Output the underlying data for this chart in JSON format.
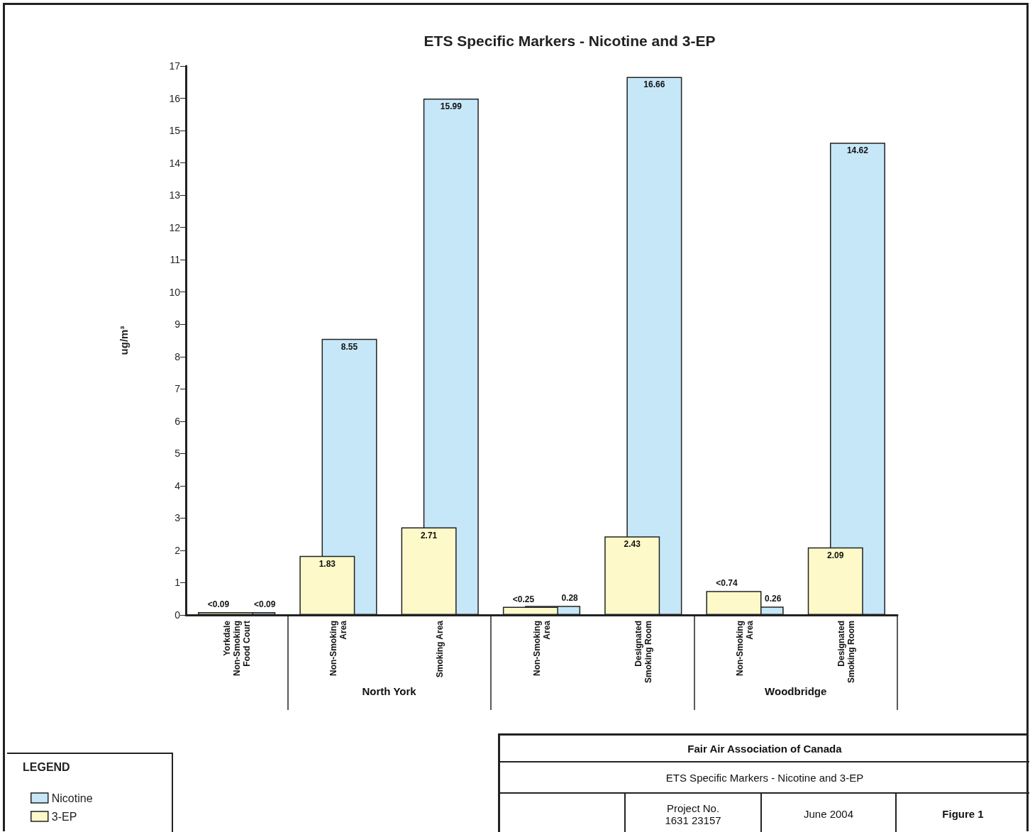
{
  "chart_data": {
    "type": "bar",
    "title": "ETS Specific Markers - Nicotine and 3-EP",
    "ylabel": "ug/m³",
    "categories": [
      "Yorkdale\nNon-Smoking\nFood Court",
      "Non-Smoking\nArea",
      "Smoking Area",
      "Non-Smoking\nArea",
      "Designated\nSmoking Room",
      "Non-Smoking\nArea",
      "Designated\nSmoking Room"
    ],
    "series": [
      {
        "name": "Nicotine",
        "color": "#c6e7f8",
        "values": [
          0.09,
          8.55,
          15.99,
          0.28,
          16.66,
          0.26,
          14.62
        ],
        "value_labels": [
          "<0.09",
          "8.55",
          "15.99",
          "0.28",
          "16.66",
          "0.26",
          "14.62"
        ]
      },
      {
        "name": "3-EP",
        "color": "#fdf9c9",
        "values": [
          0.09,
          1.83,
          2.71,
          0.25,
          2.43,
          0.74,
          2.09
        ],
        "value_labels": [
          "<0.09",
          "1.83",
          "2.71",
          "<0.25",
          "2.43",
          "<0.74",
          "2.09"
        ]
      }
    ],
    "ylim": [
      0,
      17
    ],
    "yticks": [
      0,
      1,
      2,
      3,
      4,
      5,
      6,
      7,
      8,
      9,
      10,
      11,
      12,
      13,
      14,
      15,
      16,
      17
    ],
    "grid": false,
    "legend": "bottom left",
    "legend_title": "LEGEND",
    "annotations": [
      "North York",
      "Woodbridge",
      "Fair Air Association of Canada",
      "ETS Specific Markers - Nicotine and 3-EP",
      "Project No.\n1631 23157",
      "June 2004",
      "Figure 1"
    ]
  }
}
